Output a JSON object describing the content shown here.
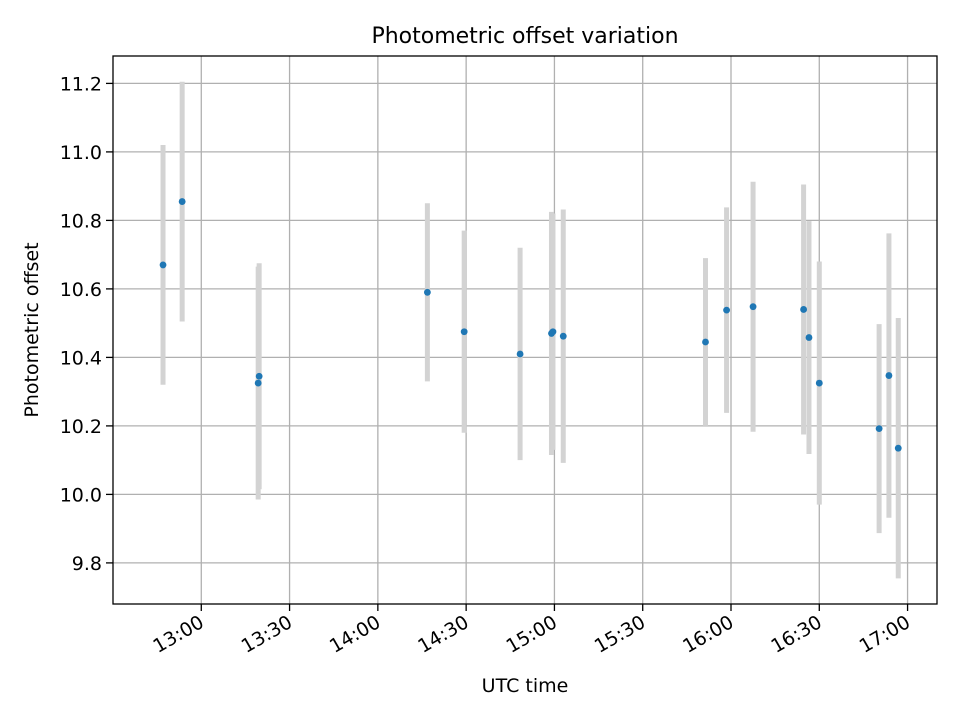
{
  "chart_data": {
    "type": "scatter",
    "title": "Photometric offset variation",
    "xlabel": "UTC time",
    "ylabel": "Photometric offset",
    "x_axis": {
      "unit": "UTC time",
      "range": [
        "12:30",
        "17:10"
      ],
      "ticks": [
        "13:00",
        "13:30",
        "14:00",
        "14:30",
        "15:00",
        "15:30",
        "16:00",
        "16:30",
        "17:00"
      ]
    },
    "y_axis": {
      "range": [
        9.68,
        11.28
      ],
      "ticks": [
        "9.8",
        "10.0",
        "10.2",
        "10.4",
        "10.6",
        "10.8",
        "11.0",
        "11.2"
      ]
    },
    "grid": true,
    "legend": "none",
    "colors": {
      "points": "#1f77b4",
      "errorbars": "#d3d3d3",
      "grid": "#b0b0b0"
    },
    "points": [
      {
        "x": "12:47:00",
        "y": 10.67,
        "err": 0.35
      },
      {
        "x": "12:53:30",
        "y": 10.855,
        "err": 0.35
      },
      {
        "x": "13:19:20",
        "y": 10.325,
        "err": 0.34
      },
      {
        "x": "13:19:40",
        "y": 10.345,
        "err": 0.33
      },
      {
        "x": "14:16:50",
        "y": 10.59,
        "err": 0.26
      },
      {
        "x": "14:29:20",
        "y": 10.475,
        "err": 0.295
      },
      {
        "x": "14:48:20",
        "y": 10.41,
        "err": 0.31
      },
      {
        "x": "14:59:00",
        "y": 10.47,
        "err": 0.355
      },
      {
        "x": "14:59:30",
        "y": 10.475,
        "err": 0.345
      },
      {
        "x": "15:03:00",
        "y": 10.462,
        "err": 0.37
      },
      {
        "x": "15:51:20",
        "y": 10.445,
        "err": 0.245
      },
      {
        "x": "15:58:30",
        "y": 10.538,
        "err": 0.3
      },
      {
        "x": "16:07:30",
        "y": 10.548,
        "err": 0.365
      },
      {
        "x": "16:24:40",
        "y": 10.54,
        "err": 0.365
      },
      {
        "x": "16:26:30",
        "y": 10.458,
        "err": 0.34
      },
      {
        "x": "16:30:00",
        "y": 10.325,
        "err": 0.355
      },
      {
        "x": "16:50:20",
        "y": 10.192,
        "err": 0.305
      },
      {
        "x": "16:53:40",
        "y": 10.347,
        "err": 0.415
      },
      {
        "x": "16:56:50",
        "y": 10.135,
        "err": 0.38
      }
    ]
  }
}
